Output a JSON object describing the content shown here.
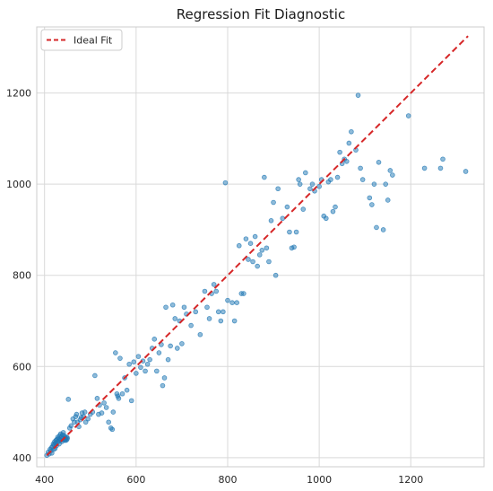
{
  "chart_data": {
    "type": "scatter",
    "title": "Regression Fit Diagnostic",
    "xlabel": "",
    "ylabel": "",
    "xlim": [
      383,
      1360
    ],
    "ylim": [
      380,
      1345
    ],
    "xticks": [
      400,
      600,
      800,
      1000,
      1200
    ],
    "yticks": [
      400,
      600,
      800,
      1000,
      1200
    ],
    "grid": true,
    "legend": {
      "placement": "top-left",
      "entries": [
        "Ideal Fit"
      ]
    },
    "colors": {
      "points": "#1f77b4",
      "ideal_line": "#d62728",
      "grid": "#d9d9d9",
      "frame": "#cccccc"
    },
    "ideal_fit_line": {
      "from": [
        405,
        405
      ],
      "to": [
        1325,
        1325
      ]
    },
    "series": [
      {
        "kind": "scatter",
        "values": [
          [
            405,
            405
          ],
          [
            408,
            412
          ],
          [
            410,
            408
          ],
          [
            412,
            418
          ],
          [
            414,
            415
          ],
          [
            415,
            422
          ],
          [
            416,
            410
          ],
          [
            418,
            425
          ],
          [
            419,
            430
          ],
          [
            420,
            418
          ],
          [
            421,
            428
          ],
          [
            422,
            435
          ],
          [
            423,
            420
          ],
          [
            424,
            432
          ],
          [
            425,
            438
          ],
          [
            426,
            426
          ],
          [
            427,
            440
          ],
          [
            428,
            433
          ],
          [
            429,
            445
          ],
          [
            430,
            436
          ],
          [
            431,
            442
          ],
          [
            432,
            430
          ],
          [
            433,
            448
          ],
          [
            434,
            440
          ],
          [
            435,
            452
          ],
          [
            436,
            438
          ],
          [
            437,
            445
          ],
          [
            438,
            435
          ],
          [
            439,
            450
          ],
          [
            440,
            442
          ],
          [
            441,
            455
          ],
          [
            442,
            440
          ],
          [
            443,
            448
          ],
          [
            444,
            438
          ],
          [
            445,
            445
          ],
          [
            446,
            442
          ],
          [
            447,
            438
          ],
          [
            448,
            445
          ],
          [
            449,
            440
          ],
          [
            450,
            443
          ],
          [
            452,
            528
          ],
          [
            455,
            465
          ],
          [
            458,
            470
          ],
          [
            462,
            485
          ],
          [
            465,
            478
          ],
          [
            468,
            490
          ],
          [
            470,
            495
          ],
          [
            472,
            478
          ],
          [
            475,
            468
          ],
          [
            478,
            483
          ],
          [
            480,
            488
          ],
          [
            482,
            498
          ],
          [
            485,
            490
          ],
          [
            488,
            500
          ],
          [
            490,
            478
          ],
          [
            495,
            485
          ],
          [
            500,
            495
          ],
          [
            505,
            500
          ],
          [
            510,
            580
          ],
          [
            515,
            530
          ],
          [
            518,
            495
          ],
          [
            520,
            515
          ],
          [
            525,
            498
          ],
          [
            530,
            520
          ],
          [
            535,
            510
          ],
          [
            540,
            478
          ],
          [
            545,
            465
          ],
          [
            548,
            462
          ],
          [
            550,
            500
          ],
          [
            555,
            630
          ],
          [
            558,
            540
          ],
          [
            560,
            535
          ],
          [
            562,
            530
          ],
          [
            565,
            618
          ],
          [
            570,
            540
          ],
          [
            575,
            575
          ],
          [
            580,
            548
          ],
          [
            585,
            605
          ],
          [
            590,
            525
          ],
          [
            595,
            610
          ],
          [
            600,
            585
          ],
          [
            605,
            622
          ],
          [
            610,
            598
          ],
          [
            615,
            612
          ],
          [
            620,
            590
          ],
          [
            625,
            605
          ],
          [
            630,
            615
          ],
          [
            635,
            640
          ],
          [
            640,
            660
          ],
          [
            645,
            590
          ],
          [
            650,
            630
          ],
          [
            655,
            648
          ],
          [
            658,
            558
          ],
          [
            662,
            575
          ],
          [
            665,
            730
          ],
          [
            670,
            615
          ],
          [
            675,
            645
          ],
          [
            680,
            735
          ],
          [
            685,
            705
          ],
          [
            690,
            640
          ],
          [
            695,
            700
          ],
          [
            700,
            650
          ],
          [
            705,
            730
          ],
          [
            710,
            715
          ],
          [
            720,
            690
          ],
          [
            730,
            720
          ],
          [
            740,
            670
          ],
          [
            750,
            765
          ],
          [
            755,
            730
          ],
          [
            760,
            705
          ],
          [
            765,
            760
          ],
          [
            770,
            780
          ],
          [
            775,
            765
          ],
          [
            780,
            720
          ],
          [
            785,
            700
          ],
          [
            790,
            720
          ],
          [
            795,
            1003
          ],
          [
            800,
            745
          ],
          [
            810,
            740
          ],
          [
            815,
            700
          ],
          [
            820,
            740
          ],
          [
            825,
            865
          ],
          [
            830,
            760
          ],
          [
            835,
            760
          ],
          [
            840,
            880
          ],
          [
            845,
            835
          ],
          [
            850,
            870
          ],
          [
            855,
            830
          ],
          [
            860,
            885
          ],
          [
            865,
            820
          ],
          [
            870,
            845
          ],
          [
            875,
            855
          ],
          [
            880,
            1015
          ],
          [
            885,
            860
          ],
          [
            890,
            830
          ],
          [
            895,
            920
          ],
          [
            900,
            960
          ],
          [
            905,
            800
          ],
          [
            910,
            990
          ],
          [
            920,
            925
          ],
          [
            930,
            950
          ],
          [
            935,
            895
          ],
          [
            940,
            860
          ],
          [
            945,
            862
          ],
          [
            950,
            895
          ],
          [
            955,
            1010
          ],
          [
            958,
            1000
          ],
          [
            965,
            945
          ],
          [
            970,
            1025
          ],
          [
            980,
            990
          ],
          [
            985,
            1000
          ],
          [
            990,
            985
          ],
          [
            1000,
            995
          ],
          [
            1005,
            1010
          ],
          [
            1010,
            930
          ],
          [
            1015,
            925
          ],
          [
            1020,
            1005
          ],
          [
            1025,
            1010
          ],
          [
            1030,
            940
          ],
          [
            1035,
            950
          ],
          [
            1040,
            1015
          ],
          [
            1045,
            1070
          ],
          [
            1050,
            1045
          ],
          [
            1055,
            1055
          ],
          [
            1060,
            1050
          ],
          [
            1065,
            1090
          ],
          [
            1070,
            1115
          ],
          [
            1080,
            1075
          ],
          [
            1085,
            1195
          ],
          [
            1090,
            1035
          ],
          [
            1095,
            1010
          ],
          [
            1110,
            970
          ],
          [
            1115,
            955
          ],
          [
            1120,
            1000
          ],
          [
            1125,
            905
          ],
          [
            1130,
            1048
          ],
          [
            1140,
            900
          ],
          [
            1145,
            1000
          ],
          [
            1150,
            965
          ],
          [
            1155,
            1030
          ],
          [
            1160,
            1020
          ],
          [
            1195,
            1150
          ],
          [
            1230,
            1035
          ],
          [
            1265,
            1035
          ],
          [
            1270,
            1055
          ],
          [
            1320,
            1028
          ]
        ]
      },
      {
        "kind": "line",
        "name": "Ideal Fit",
        "values": [
          [
            405,
            405
          ],
          [
            1325,
            1325
          ]
        ]
      }
    ]
  }
}
